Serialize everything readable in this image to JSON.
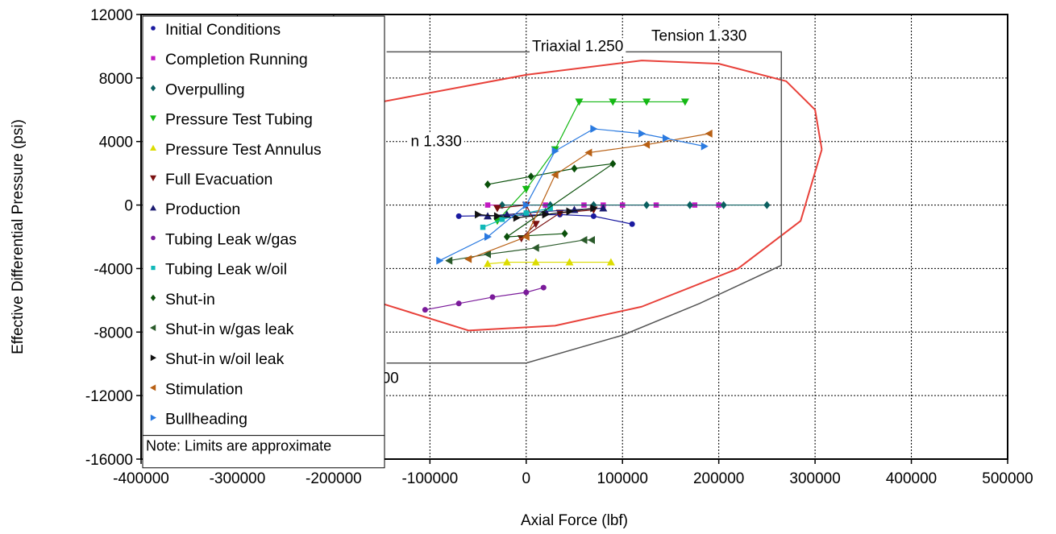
{
  "chart_data": {
    "type": "scatter",
    "title": "",
    "xlabel": "Axial Force (lbf)",
    "ylabel": "Effective Differential Pressure (psi)",
    "xlim": [
      -400000,
      500000
    ],
    "ylim": [
      -16000,
      12000
    ],
    "xticks": [
      -400000,
      -300000,
      -200000,
      -100000,
      0,
      100000,
      200000,
      300000,
      400000,
      500000
    ],
    "yticks": [
      -16000,
      -12000,
      -8000,
      -4000,
      0,
      4000,
      8000,
      12000
    ],
    "xtick_labels": [
      "-400000",
      "-300000",
      "-200000",
      "-100000",
      "0",
      "100000",
      "200000",
      "300000",
      "400000",
      "500000"
    ],
    "ytick_labels": [
      "-16000",
      "-12000",
      "-8000",
      "-4000",
      "0",
      "4000",
      "8000",
      "12000"
    ],
    "grid": true,
    "legend_position": "top-left",
    "legend_note": "Note: Limits are approximate",
    "limits": {
      "triaxial_ellipse": {
        "color": "#e8413a",
        "points": [
          [
            307000,
            3500
          ],
          [
            300000,
            6000
          ],
          [
            270000,
            7800
          ],
          [
            200000,
            8900
          ],
          [
            120000,
            9100
          ],
          [
            0,
            8200
          ],
          [
            -150000,
            6500
          ],
          [
            -260000,
            4200
          ],
          [
            -300000,
            2000
          ],
          [
            -300000,
            -1000
          ],
          [
            -250000,
            -3500
          ],
          [
            -150000,
            -6200
          ],
          [
            -60000,
            -7900
          ],
          [
            30000,
            -7600
          ],
          [
            120000,
            -6400
          ],
          [
            220000,
            -4000
          ],
          [
            285000,
            -1000
          ],
          [
            307000,
            3500
          ]
        ]
      },
      "envelope": {
        "color": "#555555",
        "points": [
          [
            -145000,
            9650
          ],
          [
            265000,
            9650
          ],
          [
            265000,
            -3800
          ],
          [
            180000,
            -6200
          ],
          [
            100000,
            -8200
          ],
          [
            0,
            -9950
          ],
          [
            -145000,
            -9950
          ]
        ]
      }
    },
    "annotations": [
      {
        "text": "Triaxial 1.250",
        "x": 6000,
        "y": 9700
      },
      {
        "text": "Tension 1.330",
        "x": 130000,
        "y": 10350
      },
      {
        "text": "n 1.330",
        "x": -120000,
        "y": 3700
      },
      {
        "text": "00",
        "x": -150000,
        "y": -11200
      }
    ],
    "series": [
      {
        "name": "Initial Conditions",
        "color": "#1a1aa0",
        "marker": "circle",
        "x": [
          -70000,
          35000,
          70000,
          110000
        ],
        "y": [
          -700,
          -600,
          -700,
          -1200
        ]
      },
      {
        "name": "Completion Running",
        "color": "#c218c2",
        "marker": "square",
        "x": [
          -40000,
          20000,
          60000,
          80000,
          100000,
          135000,
          175000,
          200000
        ],
        "y": [
          0,
          0,
          0,
          0,
          0,
          0,
          0,
          0
        ]
      },
      {
        "name": "Overpulling",
        "color": "#0a6060",
        "marker": "diamond",
        "x": [
          -25000,
          25000,
          70000,
          125000,
          170000,
          205000,
          250000
        ],
        "y": [
          0,
          0,
          0,
          0,
          0,
          0,
          0
        ]
      },
      {
        "name": "Pressure Test Tubing",
        "color": "#14b814",
        "marker": "tri-down",
        "x": [
          -30000,
          0,
          30000,
          55000,
          90000,
          125000,
          165000
        ],
        "y": [
          -1000,
          1000,
          3500,
          6500,
          6500,
          6500,
          6500
        ]
      },
      {
        "name": "Pressure Test Annulus",
        "color": "#dcdc00",
        "marker": "tri-up",
        "x": [
          -40000,
          -20000,
          10000,
          45000,
          88000
        ],
        "y": [
          -3700,
          -3600,
          -3600,
          -3600,
          -3600
        ]
      },
      {
        "name": "Full Evacuation",
        "color": "#7a1010",
        "marker": "tri-down",
        "x": [
          -30000,
          0,
          10000,
          -5000,
          35000,
          70000
        ],
        "y": [
          -200,
          0,
          -1200,
          -2100,
          -500,
          -300
        ]
      },
      {
        "name": "Production",
        "color": "#1a1a70",
        "marker": "tri-up",
        "x": [
          -40000,
          -20000,
          0,
          20000,
          50000,
          80000
        ],
        "y": [
          -700,
          -600,
          -500,
          -400,
          -300,
          -200
        ]
      },
      {
        "name": "Tubing Leak w/gas",
        "color": "#7a1a9a",
        "marker": "circle",
        "x": [
          -105000,
          -70000,
          -35000,
          0,
          18000
        ],
        "y": [
          -6600,
          -6200,
          -5800,
          -5500,
          -5200
        ]
      },
      {
        "name": "Tubing Leak w/oil",
        "color": "#10b8b8",
        "marker": "square",
        "x": [
          -45000,
          -25000,
          0,
          25000
        ],
        "y": [
          -1400,
          -900,
          -500,
          -200
        ]
      },
      {
        "name": "Shut-in",
        "color": "#0a500a",
        "marker": "diamond",
        "x": [
          -40000,
          5000,
          50000,
          90000,
          -20000,
          40000
        ],
        "y": [
          1300,
          1800,
          2300,
          2600,
          -2000,
          -1800
        ]
      },
      {
        "name": "Shut-in w/gas leak",
        "color": "#2a5a2a",
        "marker": "tri-left",
        "x": [
          -80000,
          -40000,
          10000,
          60000,
          68000
        ],
        "y": [
          -3500,
          -3100,
          -2700,
          -2200,
          -2200
        ]
      },
      {
        "name": "Shut-in w/oil leak",
        "color": "#101010",
        "marker": "tri-right",
        "x": [
          -50000,
          -30000,
          -10000,
          20000,
          45000,
          70000
        ],
        "y": [
          -600,
          -700,
          -800,
          -600,
          -400,
          -200
        ]
      },
      {
        "name": "Stimulation",
        "color": "#b86014",
        "marker": "tri-left",
        "x": [
          -60000,
          0,
          30000,
          65000,
          125000,
          190000
        ],
        "y": [
          -3400,
          -2000,
          1900,
          3300,
          3800,
          4500
        ]
      },
      {
        "name": "Bullheading",
        "color": "#2a7ae0",
        "marker": "tri-right",
        "x": [
          -90000,
          -40000,
          0,
          30000,
          70000,
          120000,
          145000,
          185000
        ],
        "y": [
          -3500,
          -2000,
          0,
          3400,
          4800,
          4500,
          4200,
          3700
        ]
      }
    ]
  }
}
